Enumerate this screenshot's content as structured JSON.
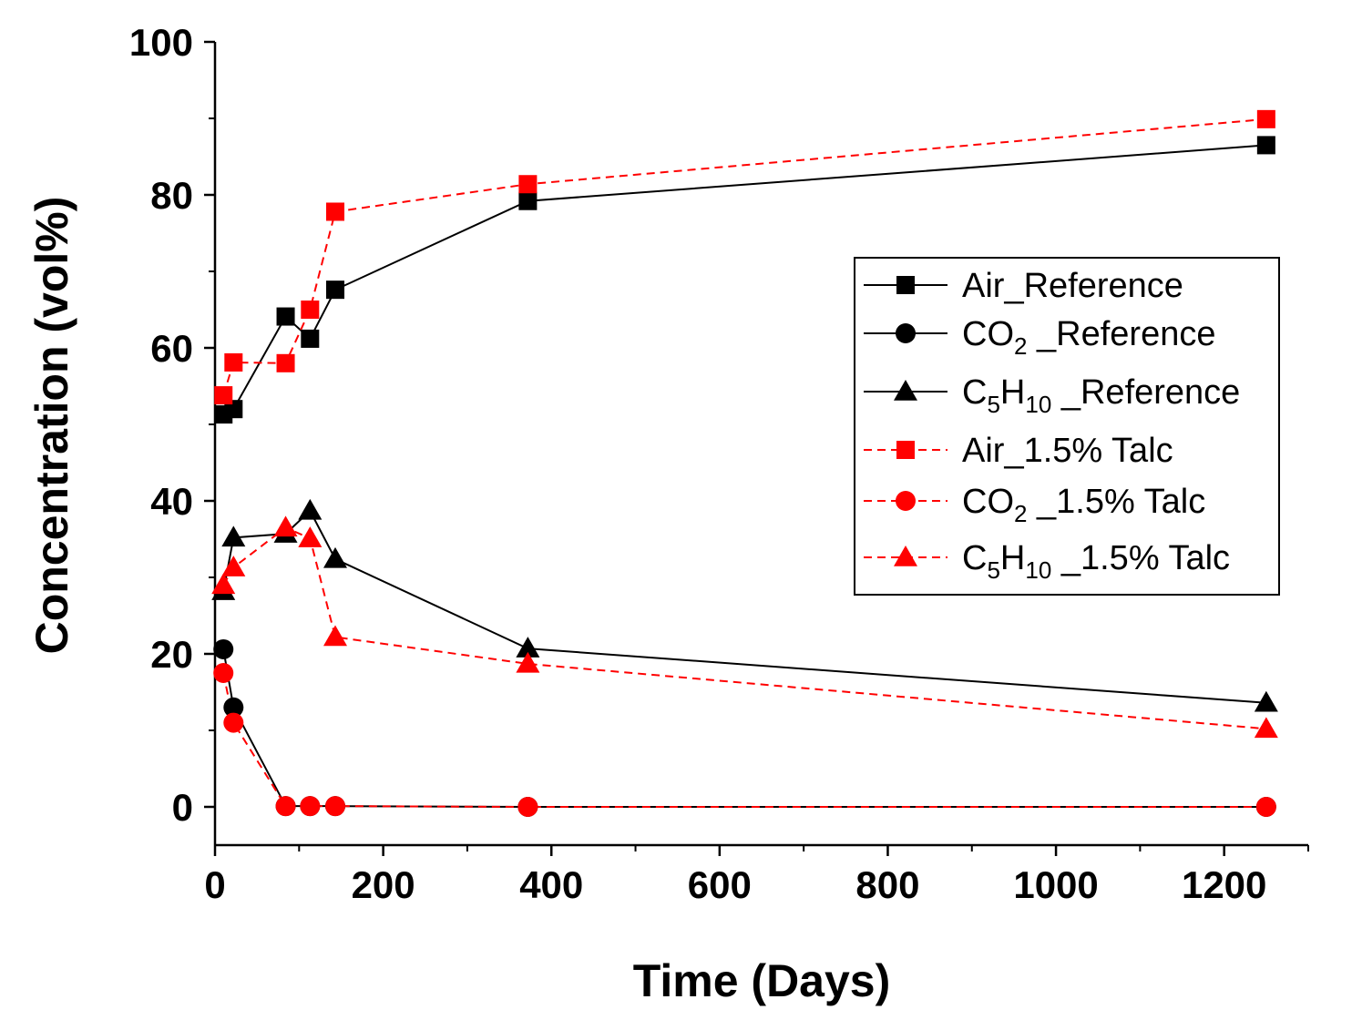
{
  "chart_data": {
    "type": "line",
    "xlabel": "Time (Days)",
    "ylabel": "Concentration (vol%)",
    "xlim": [
      0,
      1300
    ],
    "ylim": [
      -5,
      100
    ],
    "xticks": [
      0,
      200,
      400,
      600,
      800,
      1000,
      1200
    ],
    "yticks": [
      0,
      20,
      40,
      60,
      80,
      100
    ],
    "xtick_labels": [
      "0",
      "200",
      "400",
      "600",
      "800",
      "1000",
      "1200"
    ],
    "ytick_labels": [
      "0",
      "20",
      "40",
      "60",
      "80",
      "100"
    ],
    "legend_position": "center-right",
    "series": [
      {
        "name": "Air_Reference",
        "label_main": "Air_Reference",
        "label_sub": "",
        "label_tail": "",
        "color": "#000000",
        "marker": "square",
        "dashed": false,
        "x": [
          10,
          22,
          84,
          113,
          143,
          372,
          1250
        ],
        "y": [
          51.3,
          52.0,
          64.1,
          61.2,
          67.6,
          79.2,
          86.5
        ]
      },
      {
        "name": "CO2 _Reference",
        "label_main": "CO",
        "label_sub": "2",
        "label_tail": " _Reference",
        "color": "#000000",
        "marker": "circle",
        "dashed": false,
        "x": [
          10,
          22,
          84,
          113,
          143,
          372,
          1250
        ],
        "y": [
          20.6,
          13.0,
          0.1,
          0.1,
          0.1,
          0.0,
          0.0
        ]
      },
      {
        "name": "C5H10 _Reference",
        "label_main": "C",
        "label_sub": "5",
        "label_mid": "H",
        "label_sub2": "10",
        "label_tail": " _Reference",
        "color": "#000000",
        "marker": "triangle",
        "dashed": false,
        "x": [
          10,
          22,
          84,
          113,
          143,
          372,
          1250
        ],
        "y": [
          28.2,
          35.2,
          35.7,
          38.7,
          32.4,
          20.7,
          13.6
        ]
      },
      {
        "name": "Air_1.5% Talc",
        "label_main": "Air_1.5% Talc",
        "label_sub": "",
        "label_tail": "",
        "color": "#ff0000",
        "marker": "square",
        "dashed": true,
        "x": [
          10,
          22,
          84,
          113,
          143,
          372,
          1250
        ],
        "y": [
          53.8,
          58.1,
          58.0,
          65.0,
          77.8,
          81.4,
          89.9
        ]
      },
      {
        "name": "CO2 _1.5% Talc",
        "label_main": "CO",
        "label_sub": "2",
        "label_tail": " _1.5% Talc",
        "color": "#ff0000",
        "marker": "circle",
        "dashed": true,
        "x": [
          10,
          22,
          84,
          113,
          143,
          372,
          1250
        ],
        "y": [
          17.5,
          11.0,
          0.1,
          0.1,
          0.1,
          0.0,
          0.0
        ]
      },
      {
        "name": "C5H10 _1.5% Talc",
        "label_main": "C",
        "label_sub": "5",
        "label_mid": "H",
        "label_sub2": "10",
        "label_tail": " _1.5% Talc",
        "color": "#ff0000",
        "marker": "triangle",
        "dashed": true,
        "x": [
          10,
          22,
          84,
          113,
          143,
          372,
          1250
        ],
        "y": [
          29.0,
          31.3,
          36.5,
          35.1,
          22.2,
          18.7,
          10.2
        ]
      }
    ]
  }
}
